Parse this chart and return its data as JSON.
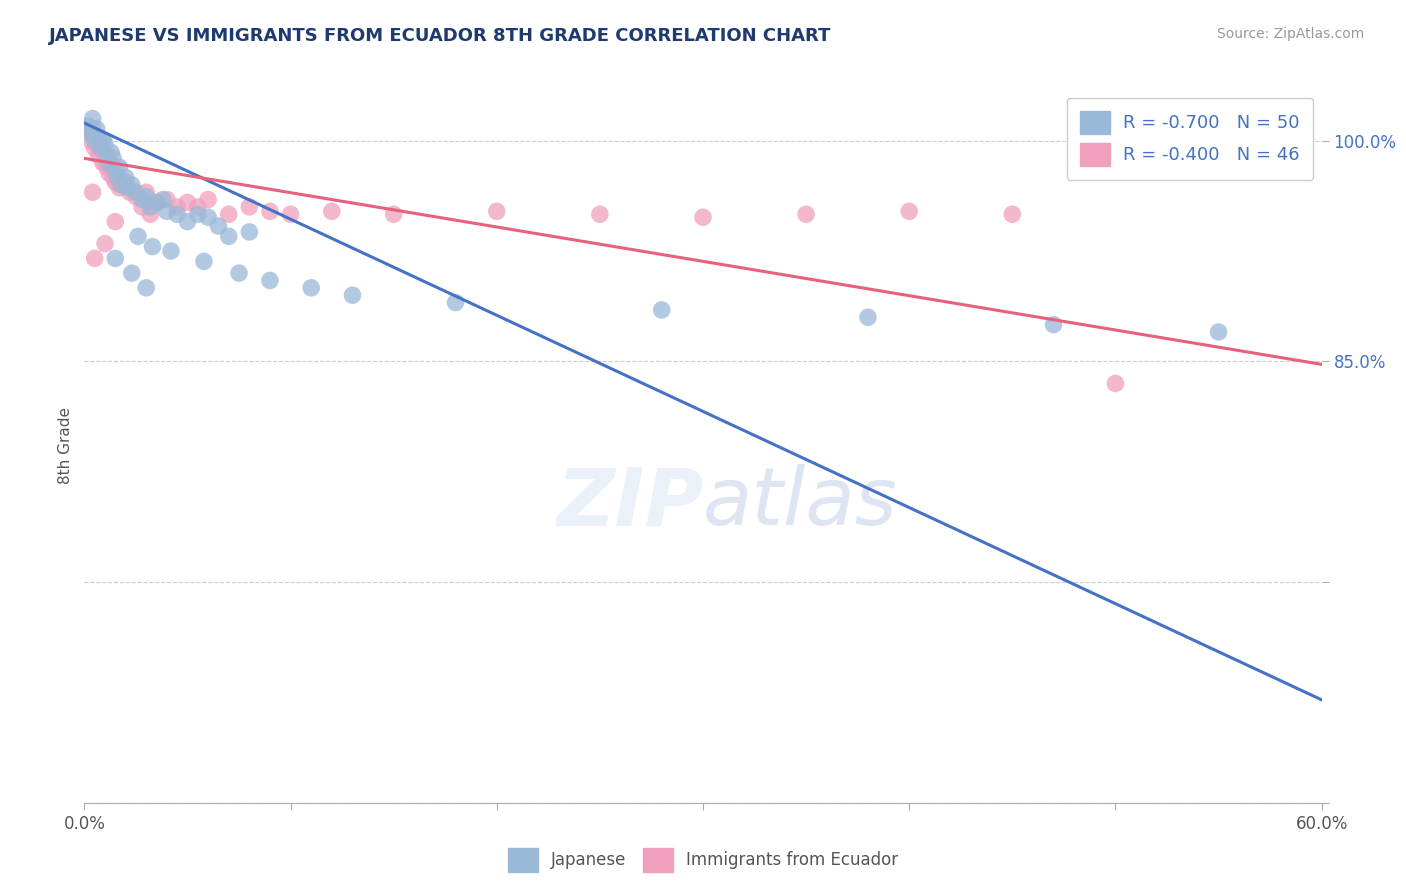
{
  "title": "JAPANESE VS IMMIGRANTS FROM ECUADOR 8TH GRADE CORRELATION CHART",
  "source": "Source: ZipAtlas.com",
  "ylabel": "8th Grade",
  "xlim": [
    0.0,
    60.0
  ],
  "ylim": [
    82.0,
    103.5
  ],
  "ytick_values": [
    85.0,
    100.0
  ],
  "ytick_extra": [
    70.0,
    55.0
  ],
  "all_yticks": [
    55.0,
    70.0,
    85.0,
    100.0
  ],
  "watermark": "ZIPatlas",
  "japanese_color": "#9ab8d8",
  "ecuador_color": "#f0a0bc",
  "blue_line_color": "#4472c4",
  "pink_line_color": "#e8607a",
  "background_color": "#ffffff",
  "grid_color": "#c8c8c8",
  "title_color": "#1e3a6e",
  "source_color": "#999999",
  "japanese_points": [
    [
      0.2,
      101.0
    ],
    [
      0.3,
      100.5
    ],
    [
      0.4,
      101.5
    ],
    [
      0.5,
      100.0
    ],
    [
      0.6,
      100.8
    ],
    [
      0.7,
      100.2
    ],
    [
      0.8,
      99.5
    ],
    [
      0.9,
      100.0
    ],
    [
      1.0,
      99.8
    ],
    [
      1.1,
      99.0
    ],
    [
      1.2,
      98.5
    ],
    [
      1.3,
      99.2
    ],
    [
      1.4,
      98.8
    ],
    [
      1.5,
      98.0
    ],
    [
      1.6,
      97.5
    ],
    [
      1.7,
      98.2
    ],
    [
      1.8,
      97.0
    ],
    [
      2.0,
      97.5
    ],
    [
      2.1,
      96.8
    ],
    [
      2.3,
      97.0
    ],
    [
      2.5,
      96.5
    ],
    [
      2.8,
      96.0
    ],
    [
      3.0,
      96.2
    ],
    [
      3.2,
      95.5
    ],
    [
      3.5,
      95.8
    ],
    [
      3.8,
      96.0
    ],
    [
      4.0,
      95.2
    ],
    [
      4.5,
      95.0
    ],
    [
      5.0,
      94.5
    ],
    [
      5.5,
      95.0
    ],
    [
      6.0,
      94.8
    ],
    [
      6.5,
      94.2
    ],
    [
      7.0,
      93.5
    ],
    [
      8.0,
      93.8
    ],
    [
      2.6,
      93.5
    ],
    [
      3.3,
      92.8
    ],
    [
      4.2,
      92.5
    ],
    [
      5.8,
      91.8
    ],
    [
      7.5,
      91.0
    ],
    [
      9.0,
      90.5
    ],
    [
      11.0,
      90.0
    ],
    [
      13.0,
      89.5
    ],
    [
      18.0,
      89.0
    ],
    [
      28.0,
      88.5
    ],
    [
      38.0,
      88.0
    ],
    [
      47.0,
      87.5
    ],
    [
      1.5,
      92.0
    ],
    [
      2.3,
      91.0
    ],
    [
      3.0,
      90.0
    ],
    [
      55.0,
      87.0
    ]
  ],
  "ecuador_points": [
    [
      0.2,
      100.5
    ],
    [
      0.3,
      100.0
    ],
    [
      0.4,
      100.8
    ],
    [
      0.5,
      99.5
    ],
    [
      0.6,
      99.8
    ],
    [
      0.7,
      99.0
    ],
    [
      0.8,
      99.5
    ],
    [
      0.9,
      98.5
    ],
    [
      1.0,
      99.0
    ],
    [
      1.1,
      98.2
    ],
    [
      1.2,
      97.8
    ],
    [
      1.3,
      98.2
    ],
    [
      1.4,
      97.5
    ],
    [
      1.5,
      97.2
    ],
    [
      1.6,
      97.5
    ],
    [
      1.7,
      96.8
    ],
    [
      1.8,
      97.0
    ],
    [
      2.0,
      97.2
    ],
    [
      2.2,
      96.5
    ],
    [
      2.5,
      96.2
    ],
    [
      3.0,
      96.5
    ],
    [
      3.5,
      95.8
    ],
    [
      4.0,
      96.0
    ],
    [
      4.5,
      95.5
    ],
    [
      5.0,
      95.8
    ],
    [
      5.5,
      95.5
    ],
    [
      6.0,
      96.0
    ],
    [
      7.0,
      95.0
    ],
    [
      8.0,
      95.5
    ],
    [
      9.0,
      95.2
    ],
    [
      10.0,
      95.0
    ],
    [
      12.0,
      95.2
    ],
    [
      15.0,
      95.0
    ],
    [
      20.0,
      95.2
    ],
    [
      25.0,
      95.0
    ],
    [
      30.0,
      94.8
    ],
    [
      35.0,
      95.0
    ],
    [
      40.0,
      95.2
    ],
    [
      45.0,
      95.0
    ],
    [
      2.8,
      95.5
    ],
    [
      3.2,
      95.0
    ],
    [
      0.5,
      92.0
    ],
    [
      1.0,
      93.0
    ],
    [
      1.5,
      94.5
    ],
    [
      50.0,
      83.5
    ],
    [
      0.4,
      96.5
    ]
  ],
  "blue_line": {
    "x0": 0.0,
    "y0": 101.2,
    "x1": 60.0,
    "y1": 62.0
  },
  "pink_line": {
    "x0": 0.0,
    "y0": 98.8,
    "x1": 60.0,
    "y1": 84.8
  }
}
